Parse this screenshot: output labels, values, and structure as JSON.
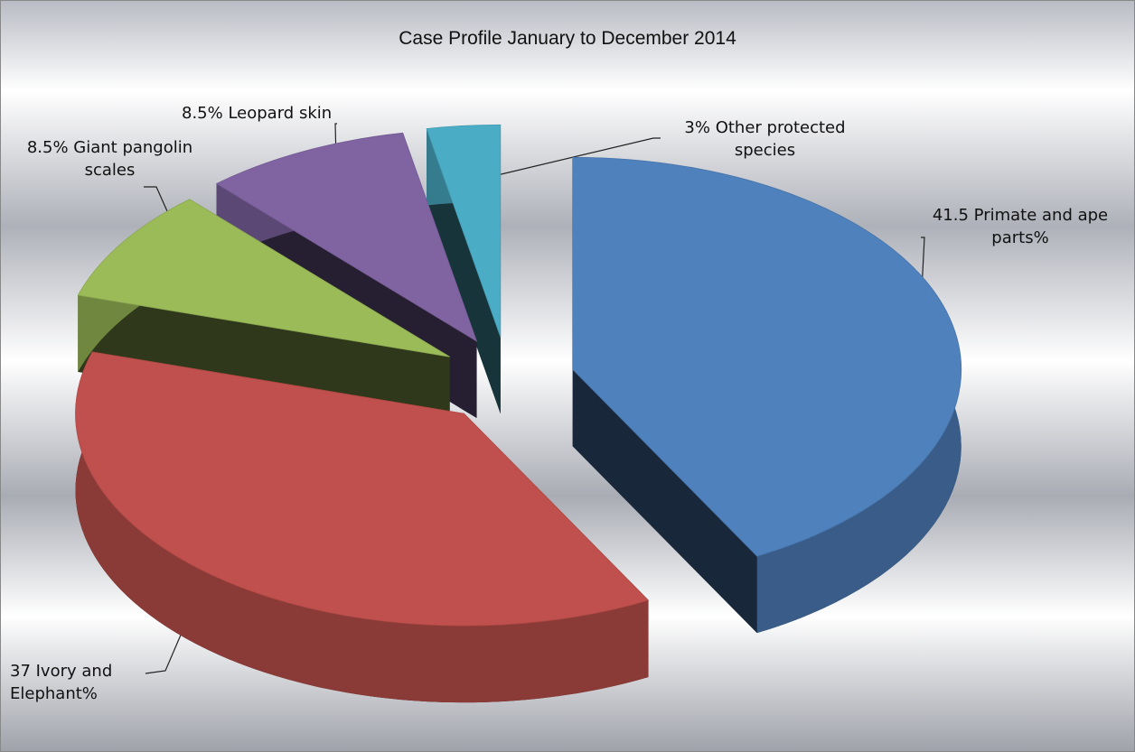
{
  "chart_data": {
    "type": "pie",
    "title": "Case Profile January to December 2014",
    "values": [
      41.5,
      37,
      8.5,
      8.5,
      3
    ],
    "value_labels": [
      "41.5 Primate and ape parts%",
      "37 Ivory and Elephant%",
      "8.5% Giant pangolin scales",
      "8.5% Leopard skin",
      "3% Other protected species"
    ],
    "colors": [
      "#4f81bd",
      "#c0504d",
      "#9bbb59",
      "#8064a2",
      "#4bacc6"
    ],
    "exploded": true,
    "three_d": true
  }
}
